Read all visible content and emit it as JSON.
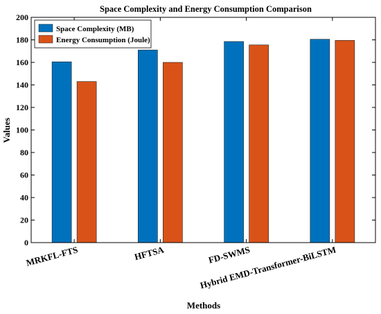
{
  "chart_data": {
    "type": "bar",
    "title": "Space Complexity and Energy Consumption Comparison",
    "xlabel": "Methods",
    "ylabel": "Values",
    "ylim": [
      0,
      200
    ],
    "yticks": [
      0,
      20,
      40,
      60,
      80,
      100,
      120,
      140,
      160,
      180,
      200
    ],
    "categories": [
      "MRKFL-FTS",
      "HFTSA",
      "FD-SWMS",
      "Hybrid EMD-Transformer-BiLSTM"
    ],
    "series": [
      {
        "name": "Space Complexity (MB)",
        "color": "#0072BD",
        "values": [
          160.5,
          171,
          178.5,
          180.5
        ]
      },
      {
        "name": "Energy Consumption (Joule)",
        "color": "#D95319",
        "values": [
          143,
          160,
          175.5,
          179.5
        ]
      }
    ],
    "grid": false,
    "legend_position": "top-left"
  }
}
